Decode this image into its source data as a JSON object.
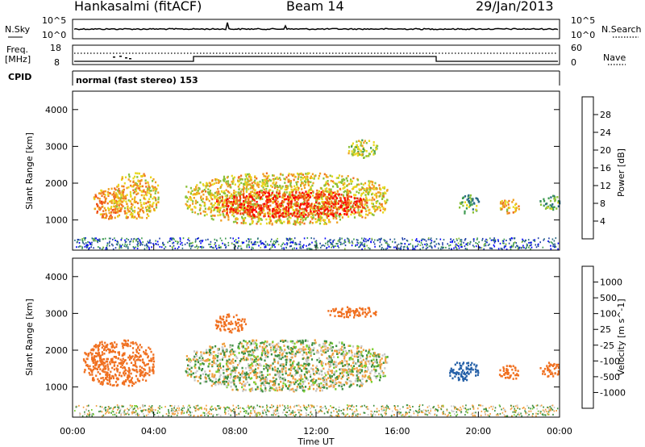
{
  "header": {
    "site": "Hankasalmi (fitACF)",
    "beam": "Beam 14",
    "date": "29/Jan/2013"
  },
  "strip_labels": {
    "nsky": "N.Sky",
    "nsearch": "N.Search",
    "freq": "Freq.",
    "freq_unit": "[MHz]",
    "nave": "Nave",
    "cpid": "CPID",
    "cpid_text": "normal (fast stereo) 153"
  },
  "strip_ticks": {
    "nsky_top": "10^5",
    "nsky_bottom": "10^0",
    "freq_top": "18",
    "freq_bottom": "8",
    "nave_top": "60",
    "nave_bottom": "0"
  },
  "colors": {
    "power_scale": [
      "#0000ff",
      "#1f3fa8",
      "#2a6a86",
      "#3d9a50",
      "#8bc13a",
      "#e8d820",
      "#f0a020",
      "#f07020",
      "#f04010",
      "#ff0000"
    ],
    "velocity_scale": [
      "#1020d0",
      "#2560a8",
      "#3f9040",
      "#7ad030",
      "#c8c8c8",
      "#c8c8c8",
      "#f0a040",
      "#f07020",
      "#f03010",
      "#ff0000"
    ]
  },
  "chart_data": [
    {
      "type": "heatmap",
      "name": "power",
      "xlabel": "",
      "ylabel": "Slant Range [km]",
      "xlim": [
        "00:00",
        "00:00"
      ],
      "ylim": [
        180,
        4500
      ],
      "yticks": [
        "1000",
        "2000",
        "3000",
        "4000"
      ],
      "colorbar": {
        "label": "Power [dB]",
        "range": [
          0,
          32
        ],
        "ticks": [
          "4",
          "8",
          "12",
          "16",
          "20",
          "24",
          "28"
        ]
      },
      "regions": [
        {
          "t_start": 1.0,
          "t_end": 2.5,
          "r_start": 1050,
          "r_end": 1900,
          "value": 22
        },
        {
          "t_start": 2.0,
          "t_end": 4.2,
          "r_start": 1050,
          "r_end": 2300,
          "value": 20
        },
        {
          "t_start": 5.5,
          "t_end": 15.5,
          "r_start": 900,
          "r_end": 2300,
          "value": 18
        },
        {
          "t_start": 7.0,
          "t_end": 14.5,
          "r_start": 1100,
          "r_end": 1800,
          "value": 28
        },
        {
          "t_start": 13.5,
          "t_end": 15.0,
          "r_start": 2700,
          "r_end": 3200,
          "value": 16
        },
        {
          "t_start": 19.0,
          "t_end": 20.0,
          "r_start": 1200,
          "r_end": 1700,
          "value": 12
        },
        {
          "t_start": 21.0,
          "t_end": 22.0,
          "r_start": 1200,
          "r_end": 1600,
          "value": 20
        },
        {
          "t_start": 23.0,
          "t_end": 24.0,
          "r_start": 1300,
          "r_end": 1700,
          "value": 12
        }
      ]
    },
    {
      "type": "heatmap",
      "name": "velocity",
      "xlabel": "Time UT",
      "ylabel": "Slant Range [km]",
      "xticks": [
        "00:00",
        "04:00",
        "08:00",
        "12:00",
        "16:00",
        "20:00",
        "00:00"
      ],
      "ylim": [
        180,
        4500
      ],
      "yticks": [
        "1000",
        "2000",
        "3000",
        "4000"
      ],
      "colorbar": {
        "label": "Velocity [m s^-1]",
        "ticks": [
          "1000",
          "500",
          "100",
          "25",
          "-25",
          "-100",
          "-500",
          "-1000"
        ]
      },
      "regions": [
        {
          "t_start": 0.5,
          "t_end": 4.0,
          "r_start": 1050,
          "r_end": 2300,
          "value": -300
        },
        {
          "t_start": 5.5,
          "t_end": 15.5,
          "r_start": 900,
          "r_end": 2300,
          "value": 0
        },
        {
          "t_start": 7.0,
          "t_end": 8.5,
          "r_start": 2500,
          "r_end": 3000,
          "value": -200
        },
        {
          "t_start": 12.5,
          "t_end": 15.0,
          "r_start": 2900,
          "r_end": 3200,
          "value": -400
        },
        {
          "t_start": 18.5,
          "t_end": 20.0,
          "r_start": 1200,
          "r_end": 1700,
          "value": 200
        },
        {
          "t_start": 21.0,
          "t_end": 22.0,
          "r_start": 1200,
          "r_end": 1600,
          "value": -300
        },
        {
          "t_start": 23.0,
          "t_end": 24.0,
          "r_start": 1300,
          "r_end": 1700,
          "value": -200
        }
      ]
    }
  ]
}
